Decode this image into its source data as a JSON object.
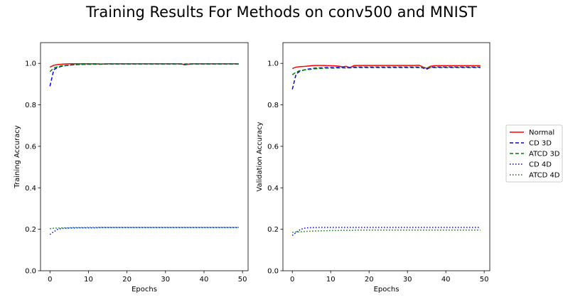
{
  "figure": {
    "title": "Training Results For Methods on conv500 and MNIST"
  },
  "legend": {
    "placement": "right-center",
    "entries": [
      {
        "label": "Normal",
        "color": "#ff0000",
        "dash": "solid"
      },
      {
        "label": "CD 3D",
        "color": "#0000ff",
        "dash": "dashed"
      },
      {
        "label": "ATCD 3D",
        "color": "#008000",
        "dash": "dashed"
      },
      {
        "label": "CD 4D",
        "color": "#0000ff",
        "dash": "dotted"
      },
      {
        "label": "ATCD 4D",
        "color": "#008000",
        "dash": "dotted"
      }
    ]
  },
  "chart_data": [
    {
      "type": "line",
      "xlabel": "Epochs",
      "ylabel": "Training Accuracy",
      "xlim": [
        -2.45,
        51.45
      ],
      "ylim": [
        0.0,
        1.1
      ],
      "xticks": [
        0,
        10,
        20,
        30,
        40,
        50
      ],
      "yticks": [
        0.0,
        0.2,
        0.4,
        0.6,
        0.8,
        1.0
      ],
      "ytick_labels": [
        "0.0",
        "0.2",
        "0.4",
        "0.6",
        "0.8",
        "1.0"
      ],
      "grid": false,
      "series": [
        {
          "name": "Normal",
          "x_range": [
            0,
            49
          ],
          "values": [
            0.982,
            0.991,
            0.994,
            0.996,
            0.997,
            0.998,
            0.998,
            0.998,
            0.998,
            0.998,
            0.998,
            0.998,
            0.998,
            0.997,
            0.997,
            0.998,
            0.998,
            0.998,
            0.998,
            0.998,
            0.998,
            0.998,
            0.998,
            0.998,
            0.998,
            0.998,
            0.998,
            0.998,
            0.998,
            0.998,
            0.998,
            0.998,
            0.998,
            0.998,
            0.998,
            0.993,
            0.996,
            0.998,
            0.998,
            0.998,
            0.998,
            0.998,
            0.998,
            0.998,
            0.998,
            0.998,
            0.998,
            0.998,
            0.998,
            0.998
          ]
        },
        {
          "name": "CD 3D",
          "x_range": [
            0,
            49
          ],
          "values": [
            0.89,
            0.97,
            0.98,
            0.986,
            0.989,
            0.991,
            0.993,
            0.994,
            0.995,
            0.996,
            0.996,
            0.996,
            0.997,
            0.996,
            0.997,
            0.997,
            0.997,
            0.997,
            0.997,
            0.997,
            0.997,
            0.997,
            0.997,
            0.997,
            0.997,
            0.997,
            0.997,
            0.997,
            0.997,
            0.997,
            0.997,
            0.997,
            0.997,
            0.997,
            0.997,
            0.996,
            0.997,
            0.997,
            0.997,
            0.997,
            0.997,
            0.997,
            0.997,
            0.997,
            0.997,
            0.997,
            0.997,
            0.997,
            0.997,
            0.997
          ]
        },
        {
          "name": "ATCD 3D",
          "x_range": [
            0,
            49
          ],
          "values": [
            0.96,
            0.978,
            0.984,
            0.988,
            0.99,
            0.992,
            0.993,
            0.994,
            0.995,
            0.995,
            0.996,
            0.996,
            0.996,
            0.996,
            0.997,
            0.997,
            0.997,
            0.997,
            0.997,
            0.997,
            0.997,
            0.997,
            0.997,
            0.997,
            0.997,
            0.997,
            0.997,
            0.997,
            0.997,
            0.997,
            0.997,
            0.997,
            0.997,
            0.997,
            0.997,
            0.997,
            0.997,
            0.997,
            0.997,
            0.997,
            0.997,
            0.997,
            0.997,
            0.997,
            0.997,
            0.997,
            0.997,
            0.997,
            0.997,
            0.997
          ]
        },
        {
          "name": "CD 4D",
          "x_range": [
            0,
            49
          ],
          "values": [
            0.175,
            0.188,
            0.2,
            0.204,
            0.205,
            0.206,
            0.206,
            0.207,
            0.207,
            0.207,
            0.207,
            0.207,
            0.207,
            0.208,
            0.208,
            0.208,
            0.208,
            0.208,
            0.208,
            0.208,
            0.208,
            0.208,
            0.208,
            0.208,
            0.208,
            0.208,
            0.208,
            0.208,
            0.208,
            0.208,
            0.208,
            0.208,
            0.208,
            0.208,
            0.208,
            0.208,
            0.208,
            0.208,
            0.208,
            0.208,
            0.208,
            0.208,
            0.208,
            0.208,
            0.208,
            0.208,
            0.208,
            0.208,
            0.208,
            0.208
          ]
        },
        {
          "name": "ATCD 4D",
          "x_range": [
            0,
            49
          ],
          "values": [
            0.203,
            0.205,
            0.206,
            0.207,
            0.207,
            0.207,
            0.208,
            0.208,
            0.208,
            0.208,
            0.209,
            0.209,
            0.209,
            0.209,
            0.209,
            0.209,
            0.209,
            0.209,
            0.209,
            0.209,
            0.209,
            0.209,
            0.209,
            0.209,
            0.209,
            0.209,
            0.209,
            0.209,
            0.209,
            0.209,
            0.209,
            0.209,
            0.209,
            0.209,
            0.209,
            0.209,
            0.209,
            0.209,
            0.209,
            0.209,
            0.209,
            0.209,
            0.209,
            0.209,
            0.209,
            0.209,
            0.209,
            0.209,
            0.209,
            0.209
          ]
        }
      ]
    },
    {
      "type": "line",
      "xlabel": "Epochs",
      "ylabel": "Validation  Accuracy",
      "xlim": [
        -2.45,
        51.45
      ],
      "ylim": [
        0.0,
        1.1
      ],
      "xticks": [
        0,
        10,
        20,
        30,
        40,
        50
      ],
      "yticks": [
        0.0,
        0.2,
        0.4,
        0.6,
        0.8,
        1.0
      ],
      "ytick_labels": [
        "0.0",
        "0.2",
        "0.4",
        "0.6",
        "0.8",
        "1.0"
      ],
      "grid": false,
      "series": [
        {
          "name": "Normal",
          "x_range": [
            0,
            49
          ],
          "values": [
            0.975,
            0.982,
            0.984,
            0.985,
            0.987,
            0.989,
            0.99,
            0.99,
            0.99,
            0.989,
            0.989,
            0.988,
            0.987,
            0.983,
            0.986,
            0.979,
            0.989,
            0.99,
            0.99,
            0.99,
            0.99,
            0.99,
            0.99,
            0.99,
            0.99,
            0.99,
            0.99,
            0.99,
            0.99,
            0.99,
            0.99,
            0.99,
            0.99,
            0.991,
            0.983,
            0.976,
            0.986,
            0.989,
            0.989,
            0.989,
            0.989,
            0.989,
            0.989,
            0.989,
            0.989,
            0.989,
            0.989,
            0.989,
            0.989,
            0.989
          ]
        },
        {
          "name": "CD 3D",
          "x_range": [
            0,
            49
          ],
          "values": [
            0.875,
            0.95,
            0.962,
            0.968,
            0.972,
            0.975,
            0.977,
            0.978,
            0.979,
            0.98,
            0.98,
            0.98,
            0.981,
            0.981,
            0.978,
            0.981,
            0.982,
            0.982,
            0.982,
            0.982,
            0.982,
            0.982,
            0.982,
            0.982,
            0.982,
            0.982,
            0.982,
            0.982,
            0.982,
            0.982,
            0.982,
            0.982,
            0.982,
            0.982,
            0.978,
            0.972,
            0.981,
            0.982,
            0.982,
            0.982,
            0.982,
            0.982,
            0.982,
            0.982,
            0.982,
            0.982,
            0.982,
            0.982,
            0.982,
            0.982
          ]
        },
        {
          "name": "ATCD 3D",
          "x_range": [
            0,
            49
          ],
          "values": [
            0.945,
            0.958,
            0.965,
            0.968,
            0.97,
            0.972,
            0.974,
            0.975,
            0.976,
            0.977,
            0.977,
            0.977,
            0.978,
            0.978,
            0.978,
            0.978,
            0.979,
            0.979,
            0.979,
            0.979,
            0.979,
            0.979,
            0.979,
            0.979,
            0.979,
            0.979,
            0.979,
            0.979,
            0.979,
            0.979,
            0.979,
            0.979,
            0.979,
            0.979,
            0.979,
            0.979,
            0.979,
            0.979,
            0.979,
            0.979,
            0.979,
            0.979,
            0.979,
            0.979,
            0.979,
            0.979,
            0.979,
            0.979,
            0.979,
            0.979
          ]
        },
        {
          "name": "CD 4D",
          "x_range": [
            0,
            49
          ],
          "values": [
            0.17,
            0.185,
            0.198,
            0.205,
            0.207,
            0.208,
            0.208,
            0.209,
            0.209,
            0.209,
            0.209,
            0.209,
            0.209,
            0.209,
            0.209,
            0.209,
            0.209,
            0.209,
            0.209,
            0.209,
            0.209,
            0.209,
            0.209,
            0.209,
            0.209,
            0.209,
            0.209,
            0.209,
            0.209,
            0.209,
            0.209,
            0.209,
            0.209,
            0.209,
            0.209,
            0.209,
            0.209,
            0.209,
            0.209,
            0.209,
            0.209,
            0.209,
            0.209,
            0.209,
            0.209,
            0.209,
            0.209,
            0.209,
            0.209,
            0.209
          ]
        },
        {
          "name": "ATCD 4D",
          "x_range": [
            0,
            49
          ],
          "values": [
            0.185,
            0.187,
            0.188,
            0.189,
            0.19,
            0.191,
            0.192,
            0.192,
            0.193,
            0.193,
            0.194,
            0.194,
            0.194,
            0.195,
            0.195,
            0.195,
            0.195,
            0.196,
            0.196,
            0.196,
            0.196,
            0.196,
            0.196,
            0.196,
            0.196,
            0.196,
            0.196,
            0.196,
            0.196,
            0.196,
            0.196,
            0.196,
            0.196,
            0.196,
            0.196,
            0.196,
            0.196,
            0.196,
            0.196,
            0.196,
            0.196,
            0.196,
            0.196,
            0.196,
            0.196,
            0.196,
            0.196,
            0.196,
            0.196,
            0.196
          ]
        }
      ]
    }
  ]
}
